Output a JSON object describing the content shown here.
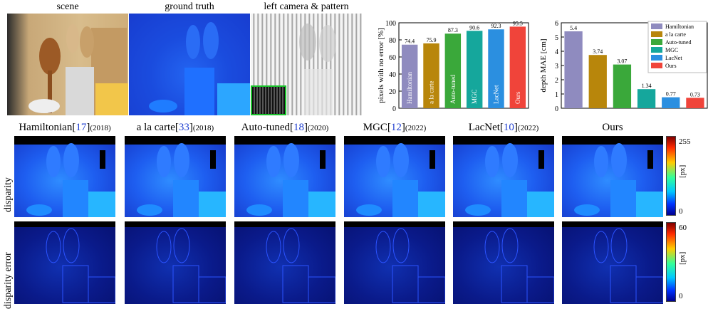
{
  "header": {
    "scene_title": "scene",
    "gt_title": "ground truth",
    "pattern_title": "left camera & pattern"
  },
  "row_labels": {
    "disparity": "disparity",
    "error": "disparity error"
  },
  "methods": [
    {
      "name": "Hamiltonian",
      "ref": "17",
      "year": "(2018)"
    },
    {
      "name": "a la carte",
      "ref": "33",
      "year": "(2018)"
    },
    {
      "name": "Auto-tuned",
      "ref": "18",
      "year": "(2020)"
    },
    {
      "name": "MGC",
      "ref": "12",
      "year": "(2022)"
    },
    {
      "name": "LacNet",
      "ref": "10",
      "year": "(2022)"
    },
    {
      "name": "Ours",
      "ref": "",
      "year": ""
    }
  ],
  "colorbars": {
    "disparity": {
      "max": "255",
      "min": "0",
      "unit": "[px]"
    },
    "error": {
      "max": "60",
      "min": "0",
      "unit": "[px]"
    }
  },
  "chart_data": [
    {
      "type": "bar",
      "categories": [
        "Hamiltonian",
        "a la carte",
        "Auto-tuned",
        "MGC",
        "LacNet",
        "Ours"
      ],
      "values": [
        74.4,
        75.9,
        87.3,
        90.6,
        92.3,
        95.5
      ],
      "value_labels": [
        "74.4",
        "75.9",
        "87.3",
        "90.6",
        "92.3",
        "95.5"
      ],
      "colors": [
        "#8f8bbf",
        "#b8860b",
        "#3aa83a",
        "#15a79c",
        "#2b8fe0",
        "#f0443a"
      ],
      "ylabel": "pixels with no error [%]",
      "ylim": [
        0,
        100
      ],
      "yticks": [
        "0",
        "20",
        "40",
        "60",
        "80",
        "100"
      ],
      "bar_labels_inside": true
    },
    {
      "type": "bar",
      "categories": [
        "Hamiltonian",
        "a la carte",
        "Auto-tuned",
        "MGC",
        "LacNet",
        "Ours"
      ],
      "values": [
        5.4,
        3.74,
        3.07,
        1.34,
        0.77,
        0.73
      ],
      "value_labels": [
        "5.4",
        "3.74",
        "3.07",
        "1.34",
        "0.77",
        "0.73"
      ],
      "colors": [
        "#8f8bbf",
        "#b8860b",
        "#3aa83a",
        "#15a79c",
        "#2b8fe0",
        "#f0443a"
      ],
      "ylabel": "depth MAE [cm]",
      "ylim": [
        0,
        6
      ],
      "yticks": [
        "0",
        "1",
        "2",
        "3",
        "4",
        "5",
        "6"
      ],
      "legend": [
        "Hamiltonian",
        "a la carte",
        "Auto-tuned",
        "MGC",
        "LacNet",
        "Ours"
      ],
      "legend_position": "top-right"
    }
  ]
}
